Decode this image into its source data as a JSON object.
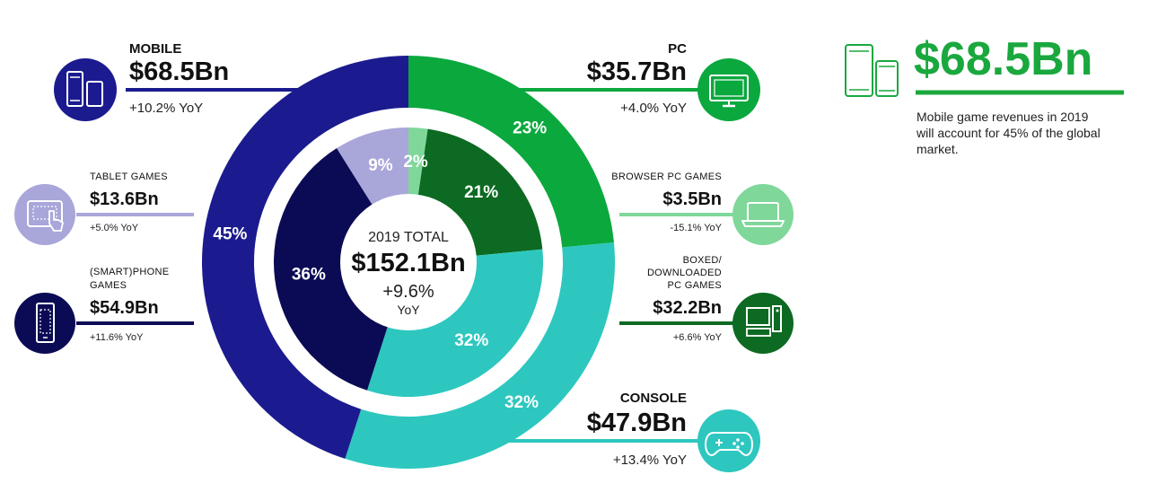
{
  "colors": {
    "mobile": "#1b1b8f",
    "pc": "#0ba83e",
    "console": "#2dc7bf",
    "tablet": "#a9a6da",
    "smartphone": "#0b0b55",
    "browser_pc": "#7fd79a",
    "boxed_pc": "#0d6a22",
    "callout": "#1aa83e"
  },
  "chart_data": {
    "type": "donut",
    "center": {
      "title": "2019 TOTAL",
      "value": "$152.1Bn",
      "growth": "+9.6%",
      "growth_unit": "YoY"
    },
    "outer_ring": [
      {
        "key": "pc",
        "name": "PC",
        "value": 35.7,
        "value_label": "$35.7Bn",
        "share": 23,
        "share_label": "23%",
        "yoy": "+4.0% YoY",
        "color": "#0ba83e"
      },
      {
        "key": "console",
        "name": "CONSOLE",
        "value": 47.9,
        "value_label": "$47.9Bn",
        "share": 32,
        "share_label": "32%",
        "yoy": "+13.4% YoY",
        "color": "#2dc7bf"
      },
      {
        "key": "mobile",
        "name": "MOBILE",
        "value": 68.5,
        "value_label": "$68.5Bn",
        "share": 45,
        "share_label": "45%",
        "yoy": "+10.2% YoY",
        "color": "#1b1b8f"
      }
    ],
    "inner_ring": [
      {
        "key": "browser_pc",
        "name": "BROWSER PC GAMES",
        "value": 3.5,
        "value_label": "$3.5Bn",
        "share": 2,
        "share_label": "2%",
        "yoy": "-15.1% YoY",
        "color": "#7fd79a"
      },
      {
        "key": "boxed_pc",
        "name": "BOXED/ DOWNLOADED PC GAMES",
        "value": 32.2,
        "value_label": "$32.2Bn",
        "share": 21,
        "share_label": "21%",
        "yoy": "+6.6% YoY",
        "color": "#0d6a22"
      },
      {
        "key": "console_inner",
        "name": "CONSOLE",
        "value": 47.9,
        "share": 32,
        "share_label": "32%",
        "color": "#2dc7bf"
      },
      {
        "key": "smartphone",
        "name": "(SMART)PHONE GAMES",
        "value": 54.9,
        "value_label": "$54.9Bn",
        "share": 36,
        "share_label": "36%",
        "yoy": "+11.6% YoY",
        "color": "#0b0b55"
      },
      {
        "key": "tablet",
        "name": "TABLET GAMES",
        "value": 13.6,
        "value_label": "$13.6Bn",
        "share": 9,
        "share_label": "9%",
        "yoy": "+5.0% YoY",
        "color": "#a9a6da"
      }
    ]
  },
  "labels": {
    "mobile": {
      "title": "MOBILE",
      "value": "$68.5Bn",
      "yoy": "+10.2% YoY"
    },
    "tablet": {
      "title": "TABLET GAMES",
      "value": "$13.6Bn",
      "yoy": "+5.0% YoY"
    },
    "smartphone": {
      "title1": "(SMART)PHONE",
      "title2": "GAMES",
      "value": "$54.9Bn",
      "yoy": "+11.6% YoY"
    },
    "pc": {
      "title": "PC",
      "value": "$35.7Bn",
      "yoy": "+4.0% YoY"
    },
    "browser_pc": {
      "title": "BROWSER PC GAMES",
      "value": "$3.5Bn",
      "yoy": "-15.1% YoY"
    },
    "boxed_pc": {
      "title1": "BOXED/",
      "title2": "DOWNLOADED",
      "title3": "PC GAMES",
      "value": "$32.2Bn",
      "yoy": "+6.6% YoY"
    },
    "console": {
      "title": "CONSOLE",
      "value": "$47.9Bn",
      "yoy": "+13.4% YoY"
    }
  },
  "callout": {
    "value": "$68.5Bn",
    "text": "Mobile game revenues in 2019 will account for 45% of the global market."
  },
  "icons": {
    "mobile": "phone-tablet-icon",
    "tablet": "tablet-touch-icon",
    "smartphone": "smartphone-icon",
    "pc": "monitor-icon",
    "browser_pc": "laptop-icon",
    "boxed_pc": "desktop-computer-icon",
    "console": "gamepad-icon",
    "callout": "phone-tablet-icon"
  }
}
